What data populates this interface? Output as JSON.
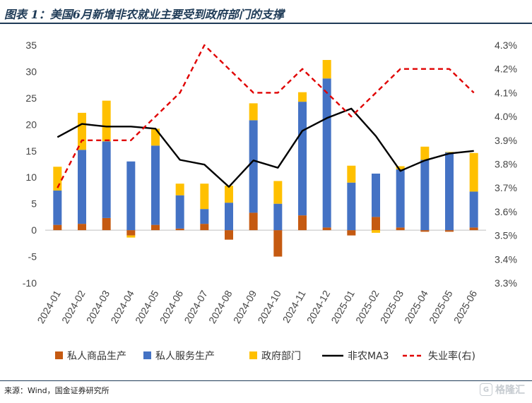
{
  "title": "图表 1：美国6月新增非农就业主要受到政府部门的支撑",
  "source": "来源：Wind，国金证券研究所",
  "watermark": "格隆汇",
  "chart_data": {
    "type": "bar",
    "stacked": true,
    "categories": [
      "2024-01",
      "2024-02",
      "2024-03",
      "2024-04",
      "2024-05",
      "2024-06",
      "2024-07",
      "2024-08",
      "2024-09",
      "2024-10",
      "2024-11",
      "2024-12",
      "2025-01",
      "2025-02",
      "2025-03",
      "2025-04",
      "2025-05",
      "2025-06"
    ],
    "y_left": {
      "min": -10,
      "max": 35,
      "ticks": [
        -10,
        -5,
        0,
        5,
        10,
        15,
        20,
        25,
        30,
        35
      ]
    },
    "y_right": {
      "min": 3.3,
      "max": 4.3,
      "ticks": [
        "3.3%",
        "3.4%",
        "3.5%",
        "3.6%",
        "3.7%",
        "3.8%",
        "3.9%",
        "4.0%",
        "4.1%",
        "4.2%",
        "4.3%"
      ]
    },
    "series": [
      {
        "name": "私人商品生产",
        "type": "bar",
        "axis": "left",
        "color": "#c55a11",
        "values": [
          1.0,
          1.2,
          2.3,
          -1.0,
          1.0,
          0.3,
          1.2,
          -1.8,
          3.3,
          -5.0,
          2.8,
          0.5,
          -1.0,
          2.5,
          0.5,
          -0.3,
          -0.3,
          0.5
        ]
      },
      {
        "name": "私人服务生产",
        "type": "bar",
        "axis": "left",
        "color": "#4472c4",
        "values": [
          6.5,
          14.0,
          14.5,
          13.0,
          15.0,
          6.3,
          2.8,
          5.2,
          17.5,
          5.0,
          21.5,
          28.2,
          9.0,
          8.2,
          11.0,
          13.3,
          14.7,
          6.8
        ]
      },
      {
        "name": "政府部门",
        "type": "bar",
        "axis": "left",
        "color": "#ffc000",
        "values": [
          4.5,
          7.0,
          7.7,
          -0.4,
          3.2,
          2.2,
          4.8,
          3.2,
          3.2,
          4.3,
          1.8,
          3.5,
          3.2,
          -0.5,
          0.6,
          2.5,
          0.1,
          7.3
        ]
      },
      {
        "name": "非农MA3",
        "type": "line",
        "axis": "left",
        "color": "#000000",
        "dash": false,
        "values": [
          17.6,
          20.1,
          19.6,
          19.6,
          19.2,
          13.3,
          12.4,
          8.2,
          13.2,
          11.8,
          18.8,
          21.2,
          23.0,
          17.8,
          11.2,
          13.2,
          14.5,
          15.0
        ]
      },
      {
        "name": "失业率(右)",
        "type": "line",
        "axis": "right",
        "color": "#e00000",
        "dash": true,
        "values": [
          3.7,
          3.9,
          3.9,
          3.9,
          4.0,
          4.1,
          4.3,
          4.2,
          4.1,
          4.1,
          4.2,
          4.1,
          4.0,
          4.1,
          4.2,
          4.2,
          4.2,
          4.1
        ]
      }
    ],
    "legend": [
      "私人商品生产",
      "私人服务生产",
      "政府部门",
      "非农MA3",
      "失业率(右)"
    ],
    "legend_position": "bottom",
    "grid": false
  }
}
